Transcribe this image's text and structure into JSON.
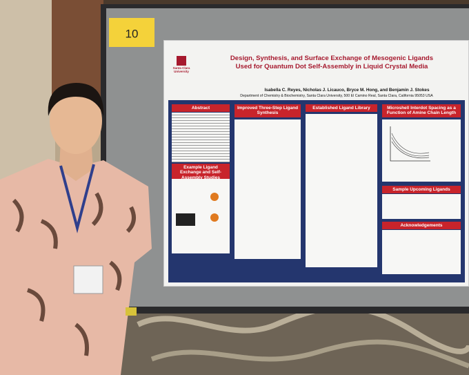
{
  "sign": {
    "number": "10"
  },
  "poster": {
    "logo": "Santa Clara University",
    "title": [
      "Design, Synthesis, and Surface Exchange of Mesogenic Ligands",
      "Used for Quantum Dot Self-Assembly in Liquid Crystal Media"
    ],
    "authors": "Isabella C. Reyes, Nicholas J. Licauco, Bryce M. Hong, and Benjamin J. Stokes",
    "affiliation": "Department of Chemistry & Biochemistry, Santa Clara University, 500 El Camino Real, Santa Clara, California 95053 USA",
    "sections": [
      "Abstract",
      "Example Ligand Exchange and Self-Assembly Studies",
      "Improved Three-Step Ligand Synthesis",
      "Established Ligand Library",
      "Microshell Interdot Spacing as a Function of Amine Chain Length",
      "Sample Upcoming Ligands",
      "Acknowledgements"
    ]
  }
}
